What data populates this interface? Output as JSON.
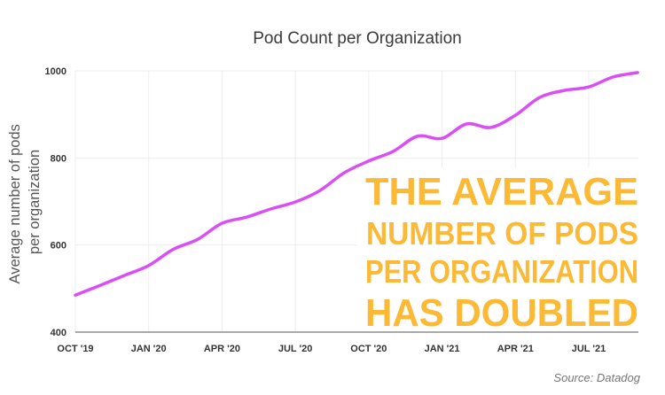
{
  "chart_data": {
    "type": "line",
    "title": "Pod Count per Organization",
    "xlabel": "",
    "ylabel": "Average number of pods per organization",
    "ylim": [
      400,
      1000
    ],
    "yticks": [
      400,
      600,
      800,
      1000
    ],
    "xticks": [
      "OCT '19",
      "JAN '20",
      "APR '20",
      "JUL '20",
      "OCT '20",
      "JAN '21",
      "APR '21",
      "JUL '21"
    ],
    "grid": true,
    "line_color": "#d94ff5",
    "x": [
      "2019-10",
      "2019-11",
      "2019-12",
      "2020-01",
      "2020-02",
      "2020-03",
      "2020-04",
      "2020-05",
      "2020-06",
      "2020-07",
      "2020-08",
      "2020-09",
      "2020-10",
      "2020-11",
      "2020-12",
      "2021-01",
      "2021-02",
      "2021-03",
      "2021-04",
      "2021-05",
      "2021-06",
      "2021-07",
      "2021-08",
      "2021-09"
    ],
    "values": [
      485,
      507,
      530,
      553,
      590,
      613,
      650,
      664,
      683,
      699,
      725,
      766,
      793,
      815,
      850,
      845,
      878,
      870,
      898,
      939,
      955,
      963,
      986,
      996
    ],
    "annotation": {
      "lines": [
        "THE AVERAGE",
        "NUMBER OF PODS",
        "PER ORGANIZATION",
        "HAS DOUBLED"
      ],
      "color": "#fbb935"
    },
    "source": "Source: Datadog"
  }
}
